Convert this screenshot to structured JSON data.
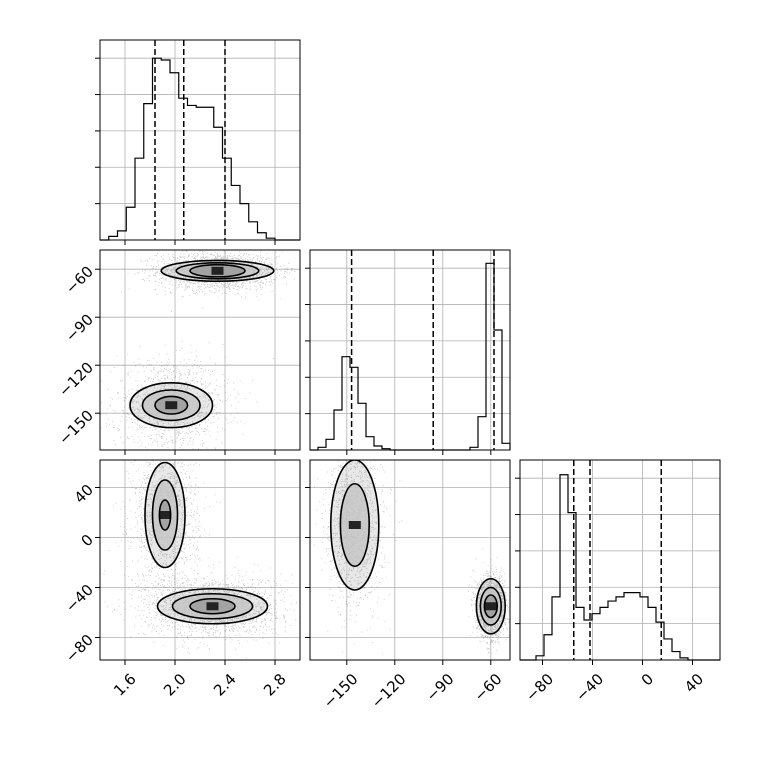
{
  "chart_data": {
    "type": "corner",
    "grid": true,
    "colors": {
      "line": "#000000",
      "grid": "#b0b0b0",
      "points": "#555555",
      "frame": "#000000"
    },
    "parameters": [
      {
        "range": [
          1.4,
          3.0
        ],
        "ticks": [
          1.6,
          2.0,
          2.4,
          2.8
        ],
        "tick_labels": [
          "1.6",
          "2.0",
          "2.4",
          "2.8"
        ],
        "quantiles": [
          1.84,
          2.07,
          2.4
        ]
      },
      {
        "range": [
          -173,
          -48
        ],
        "ticks": [
          -150,
          -120,
          -90,
          -60
        ],
        "tick_labels": [
          "−150",
          "−120",
          "−90",
          "−60"
        ],
        "quantiles": [
          -147,
          -96,
          -58
        ]
      },
      {
        "range": [
          -98,
          62
        ],
        "ticks": [
          -80,
          -40,
          0,
          40
        ],
        "tick_labels": [
          "−80",
          "−40",
          "0",
          "40"
        ],
        "quantiles": [
          -55,
          -42,
          15
        ]
      }
    ],
    "histograms": [
      {
        "param": 0,
        "edges": [
          1.4,
          1.47,
          1.54,
          1.61,
          1.68,
          1.75,
          1.82,
          1.89,
          1.96,
          2.03,
          2.1,
          2.17,
          2.24,
          2.31,
          2.38,
          2.45,
          2.52,
          2.59,
          2.66,
          2.73,
          2.8,
          2.87,
          2.94,
          3.0
        ],
        "counts": [
          0,
          2,
          5,
          18,
          45,
          75,
          100,
          99,
          92,
          78,
          74,
          73,
          73,
          62,
          45,
          30,
          20,
          10,
          4,
          1,
          0,
          0,
          0
        ],
        "ylim": [
          0,
          110
        ]
      },
      {
        "param": 1,
        "edges": [
          -173,
          -168,
          -163,
          -158,
          -153,
          -148,
          -143,
          -138,
          -133,
          -128,
          -123,
          -118,
          -113,
          -108,
          -103,
          -98,
          -93,
          -88,
          -83,
          -78,
          -73,
          -68,
          -63,
          -58,
          -53,
          -48
        ],
        "counts": [
          0,
          2,
          8,
          30,
          70,
          62,
          35,
          10,
          3,
          1,
          0,
          0,
          0,
          0,
          0,
          0,
          0,
          0,
          0,
          0,
          2,
          25,
          140,
          90,
          5
        ],
        "ylim": [
          0,
          150
        ]
      },
      {
        "param": 2,
        "edges": [
          -98,
          -91.6,
          -85.2,
          -78.8,
          -72.4,
          -66,
          -59.6,
          -53.2,
          -46.8,
          -40.4,
          -34,
          -27.6,
          -21.2,
          -14.8,
          -8.4,
          -2,
          4.4,
          10.8,
          17.2,
          23.6,
          30,
          36.4,
          42.8,
          49.2,
          55.6,
          62
        ],
        "counts": [
          0,
          0,
          2,
          12,
          30,
          88,
          70,
          25,
          19,
          22,
          25,
          28,
          30,
          32,
          32,
          30,
          25,
          18,
          10,
          4,
          1,
          0,
          0,
          0,
          0
        ],
        "ylim": [
          0,
          95
        ]
      }
    ],
    "scatter_panels": [
      {
        "x_param": 0,
        "y_param": 1,
        "clusters": [
          {
            "center": [
              2.34,
              -61
            ],
            "spread": [
              0.16,
              4
            ],
            "n": 1900
          },
          {
            "center": [
              1.97,
              -145
            ],
            "spread": [
              0.15,
              9
            ],
            "n": 1300
          }
        ],
        "contours": [
          {
            "center": [
              2.34,
              -61
            ],
            "radii": [
              [
                0.45,
                6.5
              ],
              [
                0.33,
                5
              ],
              [
                0.22,
                3.8
              ]
            ]
          },
          {
            "center": [
              1.97,
              -145
            ],
            "radii": [
              [
                0.33,
                14
              ],
              [
                0.23,
                9.5
              ],
              [
                0.13,
                5.5
              ]
            ]
          }
        ]
      },
      {
        "x_param": 0,
        "y_param": 2,
        "clusters": [
          {
            "center": [
              1.92,
              18
            ],
            "spread": [
              0.09,
              20
            ],
            "n": 1300
          },
          {
            "center": [
              2.3,
              -55
            ],
            "spread": [
              0.18,
              8
            ],
            "n": 2000
          }
        ],
        "contours": [
          {
            "center": [
              1.92,
              18
            ],
            "radii": [
              [
                0.16,
                42
              ],
              [
                0.1,
                28
              ],
              [
                0.045,
                12
              ]
            ]
          },
          {
            "center": [
              2.3,
              -55
            ],
            "radii": [
              [
                0.44,
                14
              ],
              [
                0.32,
                10
              ],
              [
                0.18,
                6
              ]
            ]
          }
        ]
      },
      {
        "x_param": 1,
        "y_param": 2,
        "clusters": [
          {
            "center": [
              -145,
              10
            ],
            "spread": [
              6,
              22
            ],
            "n": 1300
          },
          {
            "center": [
              -60,
              -55
            ],
            "spread": [
              3,
              8
            ],
            "n": 1900
          }
        ],
        "contours": [
          {
            "center": [
              -145,
              10
            ],
            "radii": [
              [
                15,
                52
              ],
              [
                9,
                33
              ]
            ]
          },
          {
            "center": [
              -60,
              -55
            ],
            "radii": [
              [
                9,
                22
              ],
              [
                6.5,
                15
              ],
              [
                4,
                9
              ]
            ]
          }
        ]
      }
    ]
  }
}
